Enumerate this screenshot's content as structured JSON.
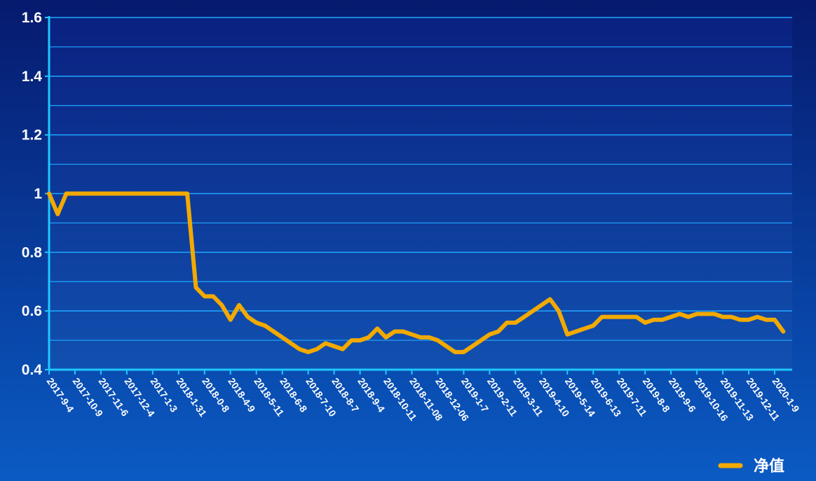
{
  "chart_data": {
    "type": "line",
    "categories": [
      "2017-9-4",
      null,
      null,
      "2017-10-9",
      null,
      null,
      "2017-11-6",
      null,
      null,
      "2017-12-4",
      null,
      null,
      "2017-1-3",
      null,
      null,
      "2018-1-31",
      null,
      null,
      "2018-0-8",
      null,
      null,
      "2018-4-9",
      null,
      null,
      "2018-5-11",
      null,
      null,
      "2018-6-8",
      null,
      null,
      "2018-7-10",
      null,
      null,
      "2018-8-7",
      null,
      null,
      "2018-9-4",
      null,
      null,
      "2018-10-11",
      null,
      null,
      "2018-11-08",
      null,
      null,
      "2018-12-06",
      null,
      null,
      "2019-1-7",
      null,
      null,
      "2019-2-11",
      null,
      null,
      "2019-3-11",
      null,
      null,
      "2019-4-10",
      null,
      null,
      "2019-5-14",
      null,
      null,
      "2019-6-13",
      null,
      null,
      "2019-7-11",
      null,
      null,
      "2019-8-8",
      null,
      null,
      "2019-9-6",
      null,
      null,
      "2019-10-16",
      null,
      null,
      "2019-11-13",
      null,
      null,
      "2019-12-11",
      null,
      null,
      "2020-1-9",
      null
    ],
    "series": [
      {
        "name": "净值",
        "color": "#f2a900",
        "values": [
          1,
          0.93,
          1,
          1,
          1,
          1,
          1,
          1,
          1,
          1,
          1,
          1,
          1,
          1,
          1,
          1,
          1,
          0.68,
          0.65,
          0.65,
          0.62,
          0.57,
          0.62,
          0.58,
          0.56,
          0.55,
          0.53,
          0.51,
          0.49,
          0.47,
          0.46,
          0.47,
          0.49,
          0.48,
          0.47,
          0.5,
          0.5,
          0.51,
          0.54,
          0.51,
          0.53,
          0.53,
          0.52,
          0.51,
          0.51,
          0.5,
          0.48,
          0.46,
          0.46,
          0.48,
          0.5,
          0.52,
          0.53,
          0.56,
          0.56,
          0.58,
          0.6,
          0.62,
          0.64,
          0.6,
          0.52,
          0.53,
          0.54,
          0.55,
          0.58,
          0.58,
          0.58,
          0.58,
          0.58,
          0.56,
          0.57,
          0.57,
          0.58,
          0.59,
          0.58,
          0.59,
          0.59,
          0.59,
          0.58,
          0.58,
          0.57,
          0.57,
          0.58,
          0.57,
          0.57,
          0.53
        ]
      }
    ],
    "ylim": [
      0.4,
      1.6
    ],
    "yticks": [
      0.4,
      0.6,
      0.8,
      1,
      1.2,
      1.4,
      1.6
    ],
    "y_minor_ticks": [
      0.5,
      0.7,
      0.9,
      1.1,
      1.3,
      1.5
    ],
    "grid": true,
    "legend": "bottom-right"
  }
}
